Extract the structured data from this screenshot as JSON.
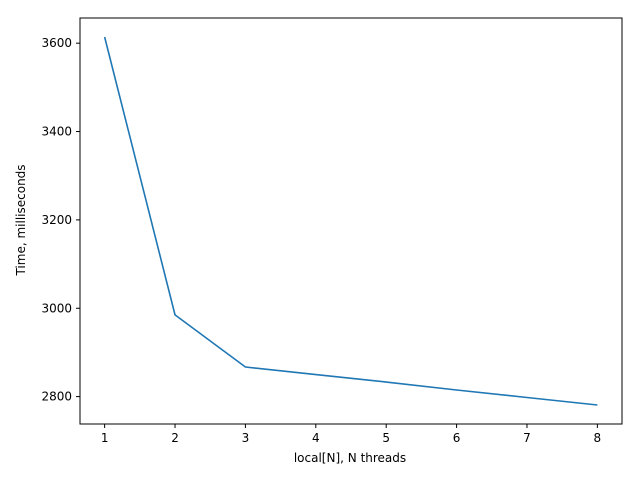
{
  "chart_data": {
    "type": "line",
    "title": "",
    "xlabel": "local[N], N threads",
    "ylabel": "Time, milliseconds",
    "x": [
      1,
      2,
      3,
      4,
      5,
      6,
      7,
      8
    ],
    "series": [
      {
        "values": [
          3614,
          2985,
          2867,
          2850,
          2833,
          2815,
          2798,
          2781
        ],
        "color": "#1f77b4"
      }
    ],
    "xlim": [
      0.65,
      8.35
    ],
    "ylim": [
      2738,
      3657
    ],
    "xticks": [
      1,
      2,
      3,
      4,
      5,
      6,
      7,
      8
    ],
    "yticks": [
      2800,
      3000,
      3200,
      3400,
      3600
    ],
    "grid": false,
    "legend": "none"
  }
}
